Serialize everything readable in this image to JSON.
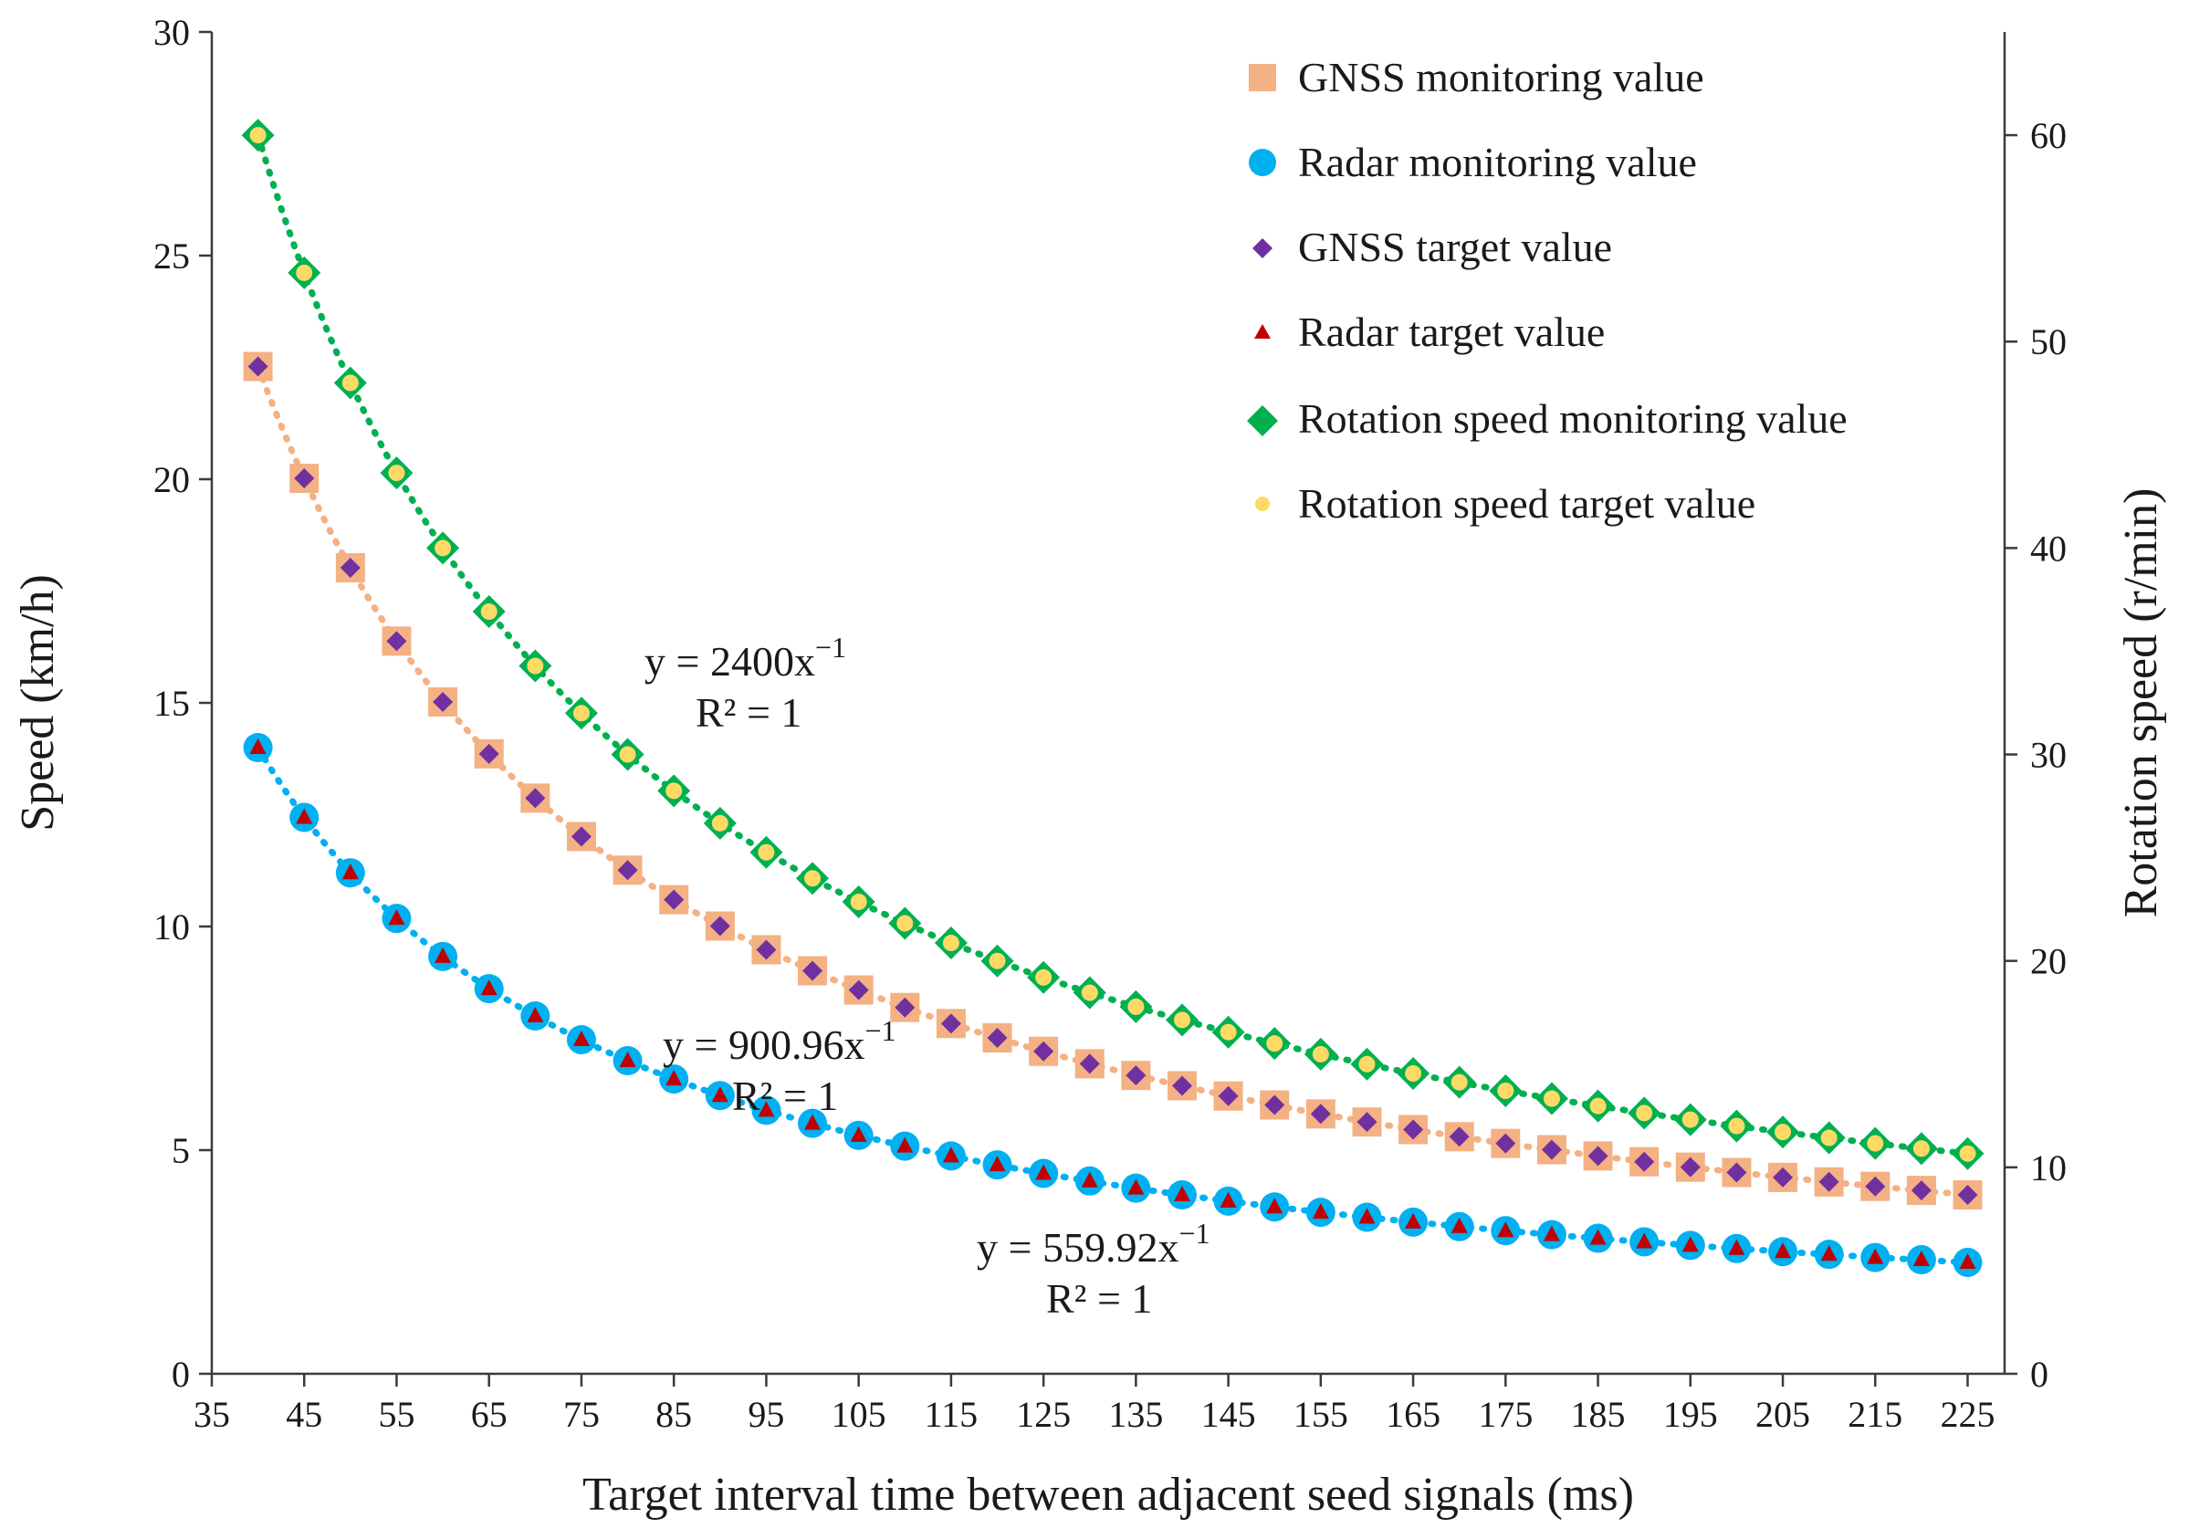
{
  "chart_data": {
    "type": "scatter",
    "title": "",
    "xlabel": "Target interval time between adjacent seed signals (ms)",
    "ylabel": "Speed (km/h)",
    "y2label": "Rotation speed (r/min)",
    "xlim": [
      35,
      229
    ],
    "ylim": [
      0,
      30
    ],
    "y2lim": [
      0,
      65
    ],
    "x_ticks": [
      35,
      45,
      55,
      65,
      75,
      85,
      95,
      105,
      115,
      125,
      135,
      145,
      155,
      165,
      175,
      185,
      195,
      205,
      215,
      225
    ],
    "y_ticks": [
      0,
      5,
      10,
      15,
      20,
      25,
      30
    ],
    "y2_ticks": [
      0,
      10,
      20,
      30,
      40,
      50,
      60
    ],
    "x": [
      40,
      45,
      50,
      55,
      60,
      65,
      70,
      75,
      80,
      85,
      90,
      95,
      100,
      105,
      110,
      115,
      120,
      125,
      130,
      135,
      140,
      145,
      150,
      155,
      160,
      165,
      170,
      175,
      180,
      185,
      190,
      195,
      200,
      205,
      210,
      215,
      220,
      225
    ],
    "legend_position": "top-right",
    "series": [
      {
        "name": "GNSS monitoring value",
        "axis": "left",
        "marker": "square",
        "color": "#f4b183",
        "coef": 900.96,
        "values": [
          22.52,
          20.02,
          18.02,
          16.38,
          15.02,
          13.86,
          12.87,
          12.01,
          11.26,
          10.6,
          10.01,
          9.48,
          9.01,
          8.58,
          8.19,
          7.83,
          7.51,
          7.21,
          6.93,
          6.67,
          6.44,
          6.21,
          6.01,
          5.81,
          5.63,
          5.46,
          5.3,
          5.15,
          5.01,
          4.87,
          4.74,
          4.62,
          4.5,
          4.39,
          4.29,
          4.19,
          4.1,
          4.0
        ]
      },
      {
        "name": "Radar monitoring value",
        "axis": "left",
        "marker": "circle",
        "color": "#00b0f0",
        "coef": 559.92,
        "values": [
          14.0,
          12.44,
          11.2,
          10.18,
          9.33,
          8.61,
          8.0,
          7.47,
          7.0,
          6.59,
          6.22,
          5.89,
          5.6,
          5.33,
          5.09,
          4.87,
          4.67,
          4.48,
          4.31,
          4.15,
          4.0,
          3.86,
          3.73,
          3.61,
          3.5,
          3.39,
          3.29,
          3.2,
          3.11,
          3.03,
          2.95,
          2.87,
          2.8,
          2.73,
          2.67,
          2.6,
          2.55,
          2.49
        ]
      },
      {
        "name": "GNSS target value",
        "axis": "left",
        "marker": "diamond",
        "color": "#7030a0",
        "values": [
          22.52,
          20.02,
          18.02,
          16.38,
          15.02,
          13.86,
          12.87,
          12.01,
          11.26,
          10.6,
          10.01,
          9.48,
          9.01,
          8.58,
          8.19,
          7.83,
          7.51,
          7.21,
          6.93,
          6.67,
          6.44,
          6.21,
          6.01,
          5.81,
          5.63,
          5.46,
          5.3,
          5.15,
          5.01,
          4.87,
          4.74,
          4.62,
          4.5,
          4.39,
          4.29,
          4.19,
          4.1,
          4.0
        ]
      },
      {
        "name": "Radar target value",
        "axis": "left",
        "marker": "triangle",
        "color": "#c00000",
        "values": [
          14.0,
          12.44,
          11.2,
          10.18,
          9.33,
          8.61,
          8.0,
          7.47,
          7.0,
          6.59,
          6.22,
          5.89,
          5.6,
          5.33,
          5.09,
          4.87,
          4.67,
          4.48,
          4.31,
          4.15,
          4.0,
          3.86,
          3.73,
          3.61,
          3.5,
          3.39,
          3.29,
          3.2,
          3.11,
          3.03,
          2.95,
          2.87,
          2.8,
          2.73,
          2.67,
          2.6,
          2.55,
          2.49
        ]
      },
      {
        "name": "Rotation speed monitoring value",
        "axis": "right",
        "marker": "diamond",
        "color": "#00b050",
        "coef": 2400,
        "values": [
          60.0,
          53.33,
          48.0,
          43.64,
          40.0,
          36.92,
          34.29,
          32.0,
          30.0,
          28.24,
          26.67,
          25.26,
          24.0,
          22.86,
          21.82,
          20.87,
          20.0,
          19.2,
          18.46,
          17.78,
          17.14,
          16.55,
          16.0,
          15.48,
          15.0,
          14.55,
          14.12,
          13.71,
          13.33,
          12.97,
          12.63,
          12.31,
          12.0,
          11.71,
          11.43,
          11.16,
          10.91,
          10.67
        ]
      },
      {
        "name": "Rotation speed target value",
        "axis": "right",
        "marker": "circle-small",
        "color": "#ffd966",
        "values": [
          60.0,
          53.33,
          48.0,
          43.64,
          40.0,
          36.92,
          34.29,
          32.0,
          30.0,
          28.24,
          26.67,
          25.26,
          24.0,
          22.86,
          21.82,
          20.87,
          20.0,
          19.2,
          18.46,
          17.78,
          17.14,
          16.55,
          16.0,
          15.48,
          15.0,
          14.55,
          14.12,
          13.71,
          13.33,
          12.97,
          12.63,
          12.31,
          12.0,
          11.71,
          11.43,
          11.16,
          10.91,
          10.67
        ]
      }
    ],
    "trendlines": [
      {
        "series": "Rotation speed monitoring value",
        "axis": "right",
        "coef": 2400,
        "color": "#00b050"
      },
      {
        "series": "GNSS monitoring value",
        "axis": "left",
        "coef": 900.96,
        "color": "#f4b183"
      },
      {
        "series": "Radar monitoring value",
        "axis": "left",
        "coef": 559.92,
        "color": "#00b0f0"
      }
    ],
    "annotations": [
      {
        "eq_base": "y = 2400x",
        "exp": "−1",
        "r2": "R² = 1"
      },
      {
        "eq_base": "y = 900.96x",
        "exp": "−1",
        "r2": "R² = 1"
      },
      {
        "eq_base": "y = 559.92x",
        "exp": "−1",
        "r2": "R² = 1"
      }
    ]
  }
}
